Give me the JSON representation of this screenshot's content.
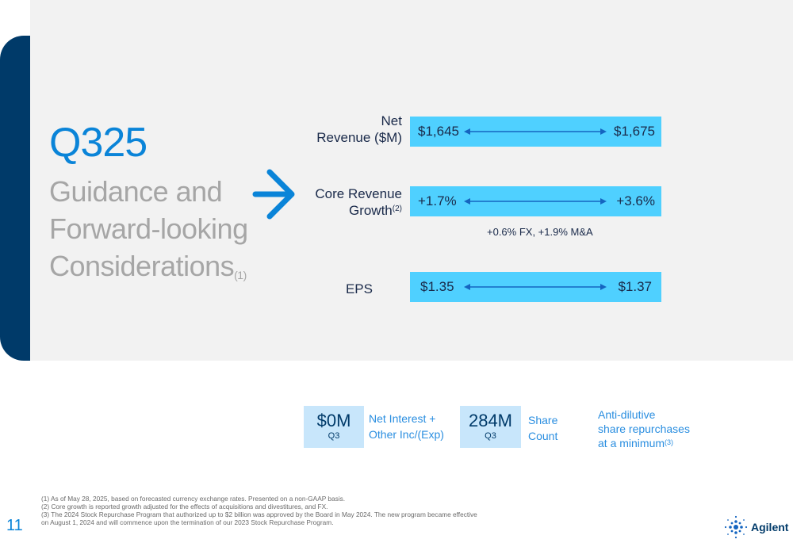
{
  "title": {
    "main": "Q325",
    "line1": "Guidance and",
    "line2": "Forward-looking",
    "line3": "Considerations",
    "line3_sup": "(1)"
  },
  "rows": [
    {
      "label_line1": "Net",
      "label_line2": "Revenue ($M)",
      "low": "$1,645",
      "high": "$1,675"
    },
    {
      "label_line1": "Core Revenue",
      "label_line2": "Growth",
      "label_sup": "(2)",
      "low": "+1.7%",
      "high": "+3.6%",
      "note": "+0.6% FX, +1.9% M&A"
    },
    {
      "label_line1": "EPS",
      "low": "$1.35",
      "high": "$1.37"
    }
  ],
  "metrics": [
    {
      "value": "$0M",
      "period": "Q3",
      "label_line1": "Net Interest +",
      "label_line2": "Other Inc/(Exp)"
    },
    {
      "value": "284M",
      "period": "Q3",
      "label_line1": "Share",
      "label_line2": "Count"
    }
  ],
  "repurchase": {
    "line1": "Anti-dilutive",
    "line2": "share repurchases",
    "line3": "at a minimum",
    "sup": "(3)"
  },
  "footnotes": [
    "(1)  As of May 28, 2025, based on forecasted currency exchange rates. Presented on a non-GAAP basis.",
    "(2)  Core growth is reported growth adjusted for the effects of acquisitions and divestitures, and FX.",
    "(3)  The 2024 Stock Repurchase Program that authorized up to $2 billion was approved by the Board in May 2024. The new program became effective on August 1, 2024 and will commence upon the termination of our 2023 Stock Repurchase Program."
  ],
  "page_number": "11",
  "logo_text": "Agilent",
  "colors": {
    "navy": "#003a69",
    "accent_blue": "#0a84d8",
    "bar_cyan": "#4fd0ff",
    "metric_box": "#c8e6fb",
    "panel_gray": "#f2f2f2"
  },
  "icons": {
    "arrow": "chevron-right-arrow-icon",
    "range": "double-headed-arrow-icon",
    "logo": "agilent-spark-logo-icon"
  }
}
